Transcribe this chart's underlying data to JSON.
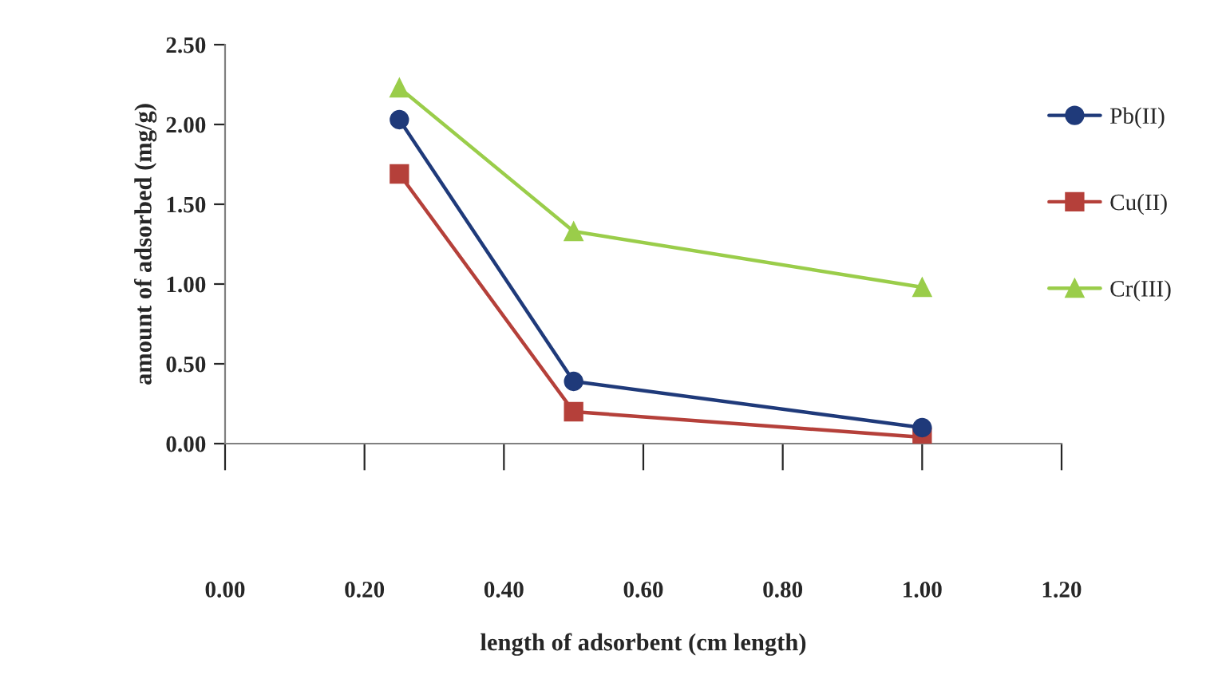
{
  "chart_data": {
    "type": "line",
    "xlabel": "length of adsorbent (cm length)",
    "ylabel": "amount of adsorbed (mg/g)",
    "x": [
      0.25,
      0.5,
      1.0
    ],
    "series": [
      {
        "name": "Pb(II)",
        "color": "#1f3a7a",
        "marker": "circle",
        "values": [
          2.03,
          0.39,
          0.1
        ]
      },
      {
        "name": "Cu(II)",
        "color": "#b5403a",
        "marker": "square",
        "values": [
          1.69,
          0.2,
          0.04
        ]
      },
      {
        "name": "Cr(III)",
        "color": "#9acd4a",
        "marker": "triangle",
        "values": [
          2.23,
          1.33,
          0.98
        ]
      }
    ],
    "xlim": [
      0,
      1.2
    ],
    "xticks": [
      {
        "value": 0,
        "label": "0.00"
      },
      {
        "value": 0.2,
        "label": "0.20"
      },
      {
        "value": 0.4,
        "label": "0.40"
      },
      {
        "value": 0.6,
        "label": "0.60"
      },
      {
        "value": 0.8,
        "label": "0.80"
      },
      {
        "value": 1.0,
        "label": "1.00"
      },
      {
        "value": 1.2,
        "label": "1.20"
      }
    ],
    "ylim": [
      0,
      2.5
    ],
    "yticks": [
      {
        "value": 0,
        "label": "0.00"
      },
      {
        "value": 0.5,
        "label": "0.50"
      },
      {
        "value": 1.0,
        "label": "1.00"
      },
      {
        "value": 1.5,
        "label": "1.50"
      },
      {
        "value": 2.0,
        "label": "2.00"
      },
      {
        "value": 2.5,
        "label": "2.50"
      }
    ],
    "grid": false,
    "legend": "right"
  }
}
